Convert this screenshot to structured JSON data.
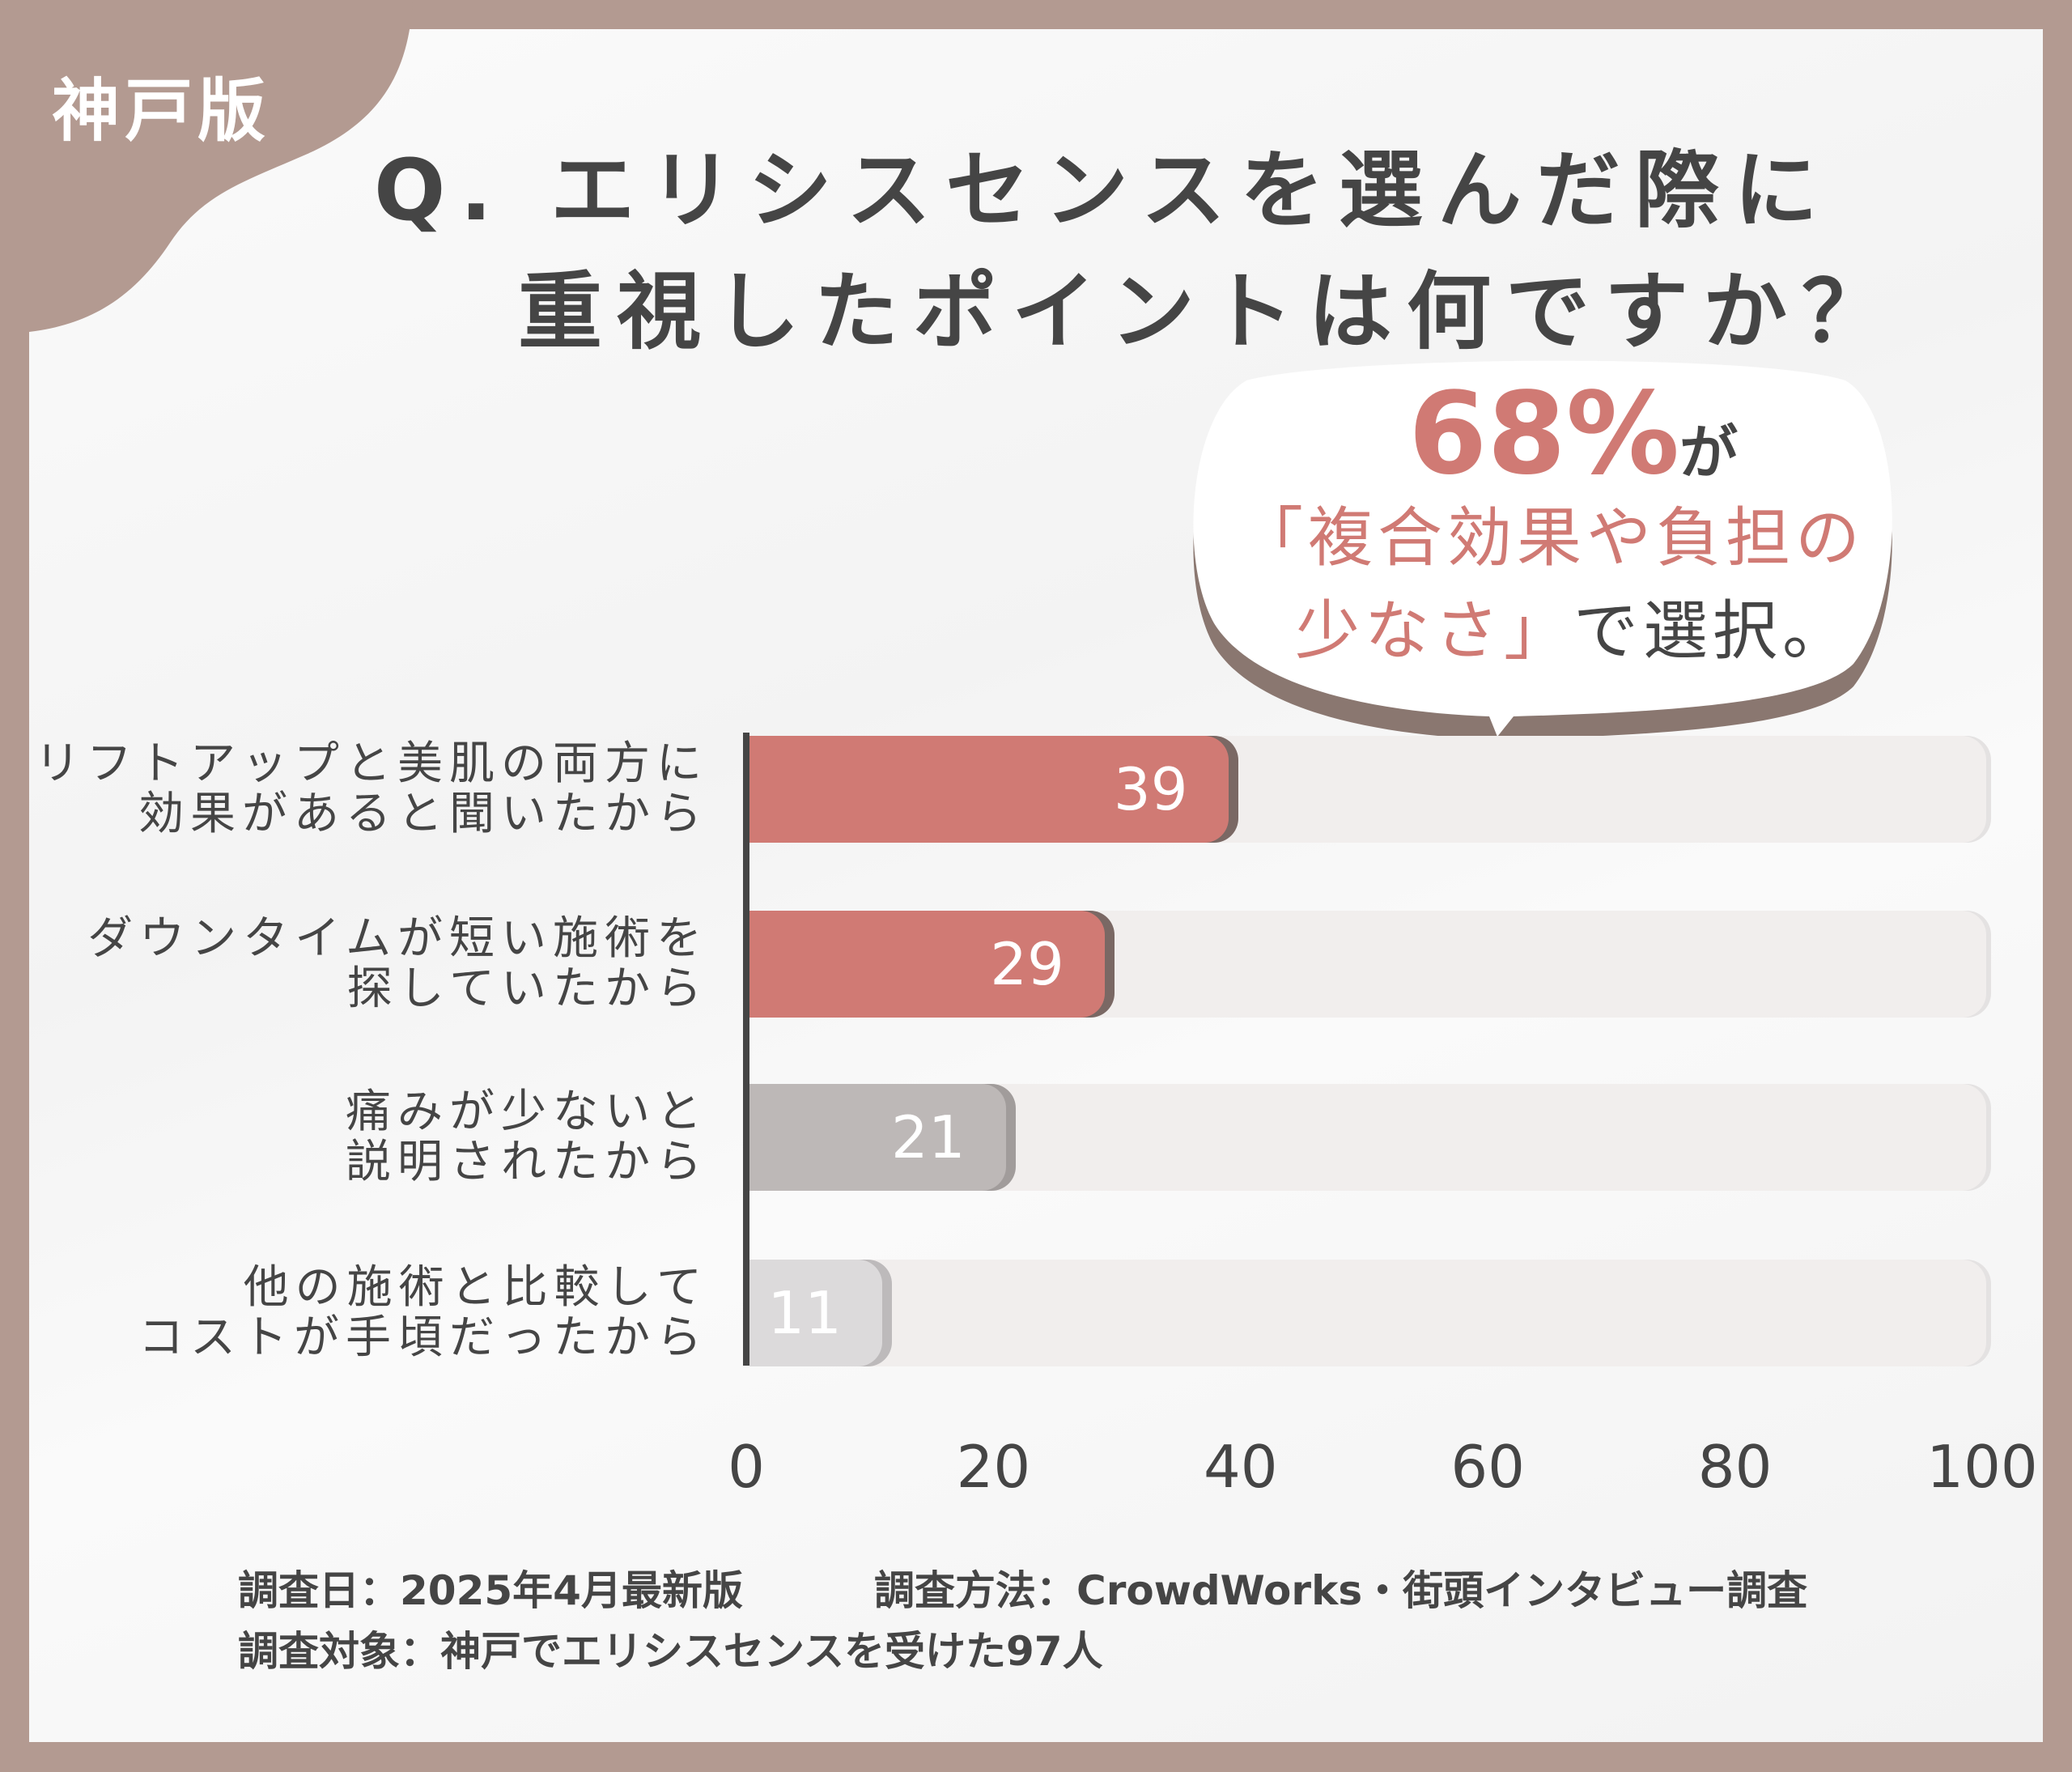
{
  "edition_label": "神戸版",
  "title": {
    "line1": "Q. エリシスセンスを選んだ際に",
    "line2": "重視したポイントは何ですか？"
  },
  "callout": {
    "percent": "68%",
    "suffix": "が",
    "line2": "「複合効果や負担の",
    "line3_highlight": "少なさ」",
    "line3_rest": "で選択。"
  },
  "colors": {
    "frame": "#b39a91",
    "accent": "#d07a74",
    "gray": "#bdb8b7",
    "light_gray": "#dcdadb",
    "track": "#f1eeed",
    "text": "#454545"
  },
  "chart_data": {
    "type": "bar",
    "orientation": "horizontal",
    "categories": [
      [
        "リフトアップと美肌の両方に",
        "効果があると聞いたから"
      ],
      [
        "ダウンタイムが短い施術を",
        "探していたから"
      ],
      [
        "痛みが少ないと",
        "説明されたから"
      ],
      [
        "他の施術と比較して",
        "コストが手頃だったから"
      ]
    ],
    "values": [
      39,
      29,
      21,
      11
    ],
    "bar_colors": [
      "#d07a74",
      "#d07a74",
      "#bdb8b7",
      "#dcdadb"
    ],
    "xlim": [
      0,
      100
    ],
    "xticks": [
      "0",
      "20",
      "40",
      "60",
      "80",
      "100"
    ],
    "grid": false
  },
  "footer": {
    "date": "調査日：2025年4月最新版",
    "method": "調査方法：CrowdWorks・街頭インタビュー調査",
    "target": "調査対象：神戸でエリシスセンスを受けた97人"
  }
}
